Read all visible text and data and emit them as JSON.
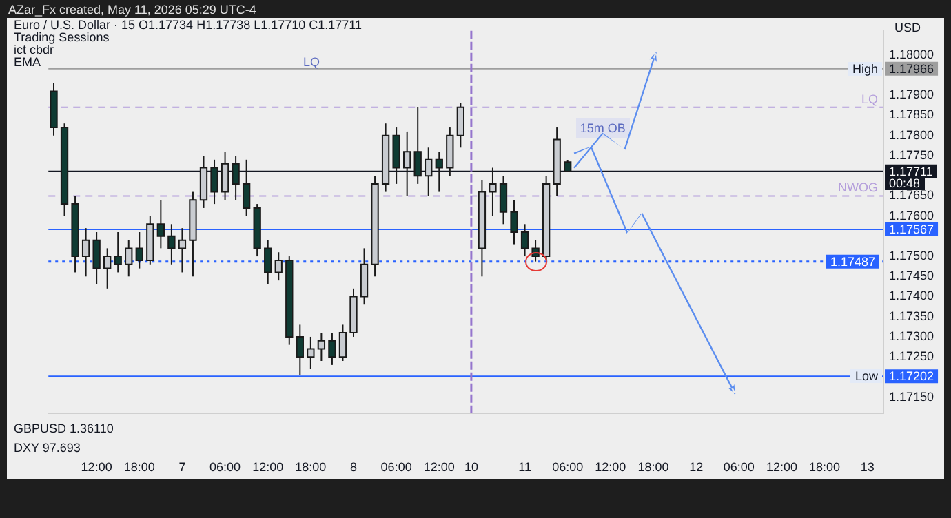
{
  "chart_data": {
    "type": "candlestick",
    "title": "Euro / U.S. Dollar · 15 O1.17734 H1.17738 L1.17710 C1.17711",
    "categories": [
      null,
      null,
      null,
      null,
      "12:00",
      null,
      null,
      null,
      "18:00",
      null,
      null,
      null,
      "7",
      null,
      null,
      null,
      "06:00",
      null,
      null,
      null,
      "12:00",
      null,
      null,
      null,
      "18:00",
      null,
      null,
      null,
      "8",
      null,
      null,
      null,
      "06:00",
      null,
      null,
      null,
      "12:00",
      null,
      null,
      "10",
      null,
      null,
      null,
      null,
      "11",
      null,
      null,
      null,
      "06:00",
      null,
      null,
      null,
      "12:00",
      null,
      null,
      null,
      "18:00",
      null,
      null,
      null,
      "12",
      null,
      null,
      null,
      "06:00",
      null,
      null,
      null,
      "12:00",
      null,
      null,
      null,
      "18:00",
      null,
      null,
      null,
      "13",
      null
    ],
    "ohlc": [
      [
        1.1791,
        1.1793,
        1.178,
        1.1782
      ],
      [
        1.1782,
        1.1783,
        1.176,
        1.1763
      ],
      [
        1.1763,
        1.1765,
        1.1746,
        1.175
      ],
      [
        1.175,
        1.1757,
        1.1745,
        1.1754
      ],
      [
        1.1754,
        1.1756,
        1.1743,
        1.1747
      ],
      [
        1.1747,
        1.1752,
        1.1742,
        1.175
      ],
      [
        1.175,
        1.1756,
        1.1746,
        1.1748
      ],
      [
        1.1748,
        1.1754,
        1.1745,
        1.1752
      ],
      [
        1.1752,
        1.1756,
        1.1747,
        1.1749
      ],
      [
        1.1749,
        1.176,
        1.1748,
        1.1758
      ],
      [
        1.1758,
        1.1764,
        1.1752,
        1.1755
      ],
      [
        1.1755,
        1.1758,
        1.1748,
        1.1752
      ],
      [
        1.1752,
        1.1757,
        1.1746,
        1.1754
      ],
      [
        1.1754,
        1.1766,
        1.1745,
        1.1764
      ],
      [
        1.1764,
        1.1775,
        1.1762,
        1.1772
      ],
      [
        1.1772,
        1.1774,
        1.1763,
        1.1766
      ],
      [
        1.1766,
        1.1776,
        1.1764,
        1.1773
      ],
      [
        1.1773,
        1.1775,
        1.1764,
        1.1768
      ],
      [
        1.1768,
        1.1774,
        1.176,
        1.1762
      ],
      [
        1.1762,
        1.1763,
        1.175,
        1.1752
      ],
      [
        1.1752,
        1.1754,
        1.1743,
        1.1746
      ],
      [
        1.1746,
        1.1751,
        1.1744,
        1.1749
      ],
      [
        1.1749,
        1.175,
        1.1728,
        1.173
      ],
      [
        1.173,
        1.1733,
        1.17205,
        1.1725
      ],
      [
        1.1725,
        1.173,
        1.1722,
        1.1727
      ],
      [
        1.1727,
        1.1731,
        1.1724,
        1.1729
      ],
      [
        1.1729,
        1.1731,
        1.1723,
        1.1725
      ],
      [
        1.1725,
        1.1733,
        1.1724,
        1.1731
      ],
      [
        1.1731,
        1.1742,
        1.173,
        1.174
      ],
      [
        1.174,
        1.1752,
        1.1738,
        1.1748
      ],
      [
        1.1748,
        1.177,
        1.1745,
        1.1768
      ],
      [
        1.1768,
        1.1783,
        1.1766,
        1.178
      ],
      [
        1.178,
        1.1782,
        1.1768,
        1.1772
      ],
      [
        1.1772,
        1.1781,
        1.1765,
        1.1776
      ],
      [
        1.1776,
        1.1787,
        1.1768,
        1.177
      ],
      [
        1.177,
        1.1777,
        1.1765,
        1.1774
      ],
      [
        1.1774,
        1.1776,
        1.1766,
        1.1772
      ],
      [
        1.1772,
        1.1782,
        1.177,
        1.178
      ],
      [
        1.178,
        1.1788,
        1.1777,
        1.1787
      ],
      null,
      [
        1.1752,
        1.1769,
        1.1745,
        1.1766
      ],
      [
        1.1766,
        1.1772,
        1.176,
        1.1768
      ],
      [
        1.1768,
        1.177,
        1.1758,
        1.1761
      ],
      [
        1.1761,
        1.1764,
        1.1753,
        1.1756
      ],
      [
        1.1756,
        1.1758,
        1.175,
        1.1752
      ],
      [
        1.1752,
        1.1754,
        1.17487,
        1.175
      ],
      [
        1.175,
        1.177,
        1.1749,
        1.1768
      ],
      [
        1.1768,
        1.1782,
        1.1765,
        1.1779
      ],
      [
        1.17734,
        1.17738,
        1.1771,
        1.17711
      ],
      null,
      null,
      null,
      null,
      null,
      null,
      null,
      null,
      null,
      null,
      null,
      null,
      null,
      null,
      null,
      null,
      null,
      null,
      null,
      null,
      null,
      null,
      null,
      null,
      null,
      null,
      null,
      null,
      null
    ],
    "colors": [
      "#0f3b33",
      "#0f3b33",
      "#0f3b33",
      "#c9ccd1",
      "#0f3b33",
      "#c9ccd1",
      "#0f3b33",
      "#c9ccd1",
      "#0f3b33",
      "#c9ccd1",
      "#0f3b33",
      "#0f3b33",
      "#c9ccd1",
      "#c9ccd1",
      "#c9ccd1",
      "#0f3b33",
      "#c9ccd1",
      "#0f3b33",
      "#0f3b33",
      "#0f3b33",
      "#0f3b33",
      "#c9ccd1",
      "#0f3b33",
      "#0f3b33",
      "#c9ccd1",
      "#c9ccd1",
      "#0f3b33",
      "#c9ccd1",
      "#c9ccd1",
      "#c9ccd1",
      "#c9ccd1",
      "#c9ccd1",
      "#0f3b33",
      "#c9ccd1",
      "#0f3b33",
      "#c9ccd1",
      "#0f3b33",
      "#c9ccd1",
      "#c9ccd1",
      null,
      "#c9ccd1",
      "#c9ccd1",
      "#0f3b33",
      "#0f3b33",
      "#0f3b33",
      "#0f3b33",
      "#c9ccd1",
      "#c9ccd1",
      "#0f3b33",
      null,
      null,
      null,
      null,
      null,
      null,
      null,
      null,
      null,
      null,
      null,
      null,
      null,
      null,
      null,
      null,
      null,
      null,
      null,
      null,
      null,
      null,
      null,
      null,
      null,
      null,
      null,
      null,
      null
    ],
    "ylim": [
      1.1711,
      1.1806
    ],
    "yticks": [
      {
        "value": 1.18,
        "label": "1.18000"
      },
      {
        "value": 1.179,
        "label": "1.17900"
      },
      {
        "value": 1.1785,
        "label": "1.17850"
      },
      {
        "value": 1.178,
        "label": "1.17800"
      },
      {
        "value": 1.1775,
        "label": "1.17750"
      },
      {
        "value": 1.1765,
        "label": "1.17650"
      },
      {
        "value": 1.176,
        "label": "1.17600"
      },
      {
        "value": 1.175,
        "label": "1.17500"
      },
      {
        "value": 1.1745,
        "label": "1.17450"
      },
      {
        "value": 1.174,
        "label": "1.17400"
      },
      {
        "value": 1.1735,
        "label": "1.17350"
      },
      {
        "value": 1.173,
        "label": "1.17300"
      },
      {
        "value": 1.1725,
        "label": "1.17250"
      },
      {
        "value": 1.1715,
        "label": "1.17150"
      }
    ],
    "ref_lines": [
      {
        "axis": "y",
        "value": 1.17966,
        "label": "1.17966",
        "color": "#9e9e9e",
        "line_style": "solid"
      },
      {
        "axis": "y",
        "value": 1.17202,
        "label": "1.17202",
        "color": "#2962ff",
        "line_style": "solid"
      },
      {
        "axis": "y",
        "value": 1.17567,
        "label": "1.17567",
        "color": "#2962ff",
        "line_style": "solid"
      },
      {
        "axis": "y",
        "value": 1.17711,
        "label": "1.17711",
        "color": "#131722",
        "line_style": "solid"
      },
      {
        "axis": "y",
        "value": 1.17487,
        "label": "1.17487",
        "color": "#2962ff",
        "line_style": "dotted"
      },
      {
        "axis": "y",
        "value": 1.1765,
        "label": "NWOG",
        "color": "#b39ddb",
        "line_style": "dashed"
      },
      {
        "axis": "y",
        "value": 1.1787,
        "label": "LQ",
        "color": "#b39ddb",
        "line_style": "dashed"
      },
      {
        "axis": "x",
        "value": "10",
        "color": "#9575cd",
        "line_style": "dashed"
      }
    ],
    "annotations": [
      "AZar_Fx created, May 11, 2026 05:29 UTC-4",
      "Trading Sessions",
      "ict cbdr",
      "EMA",
      "USD",
      "00:48",
      "GBPUSD 1.36110",
      "DXY 97.693",
      "LQ",
      "15m OB",
      "High",
      "Low"
    ]
  }
}
